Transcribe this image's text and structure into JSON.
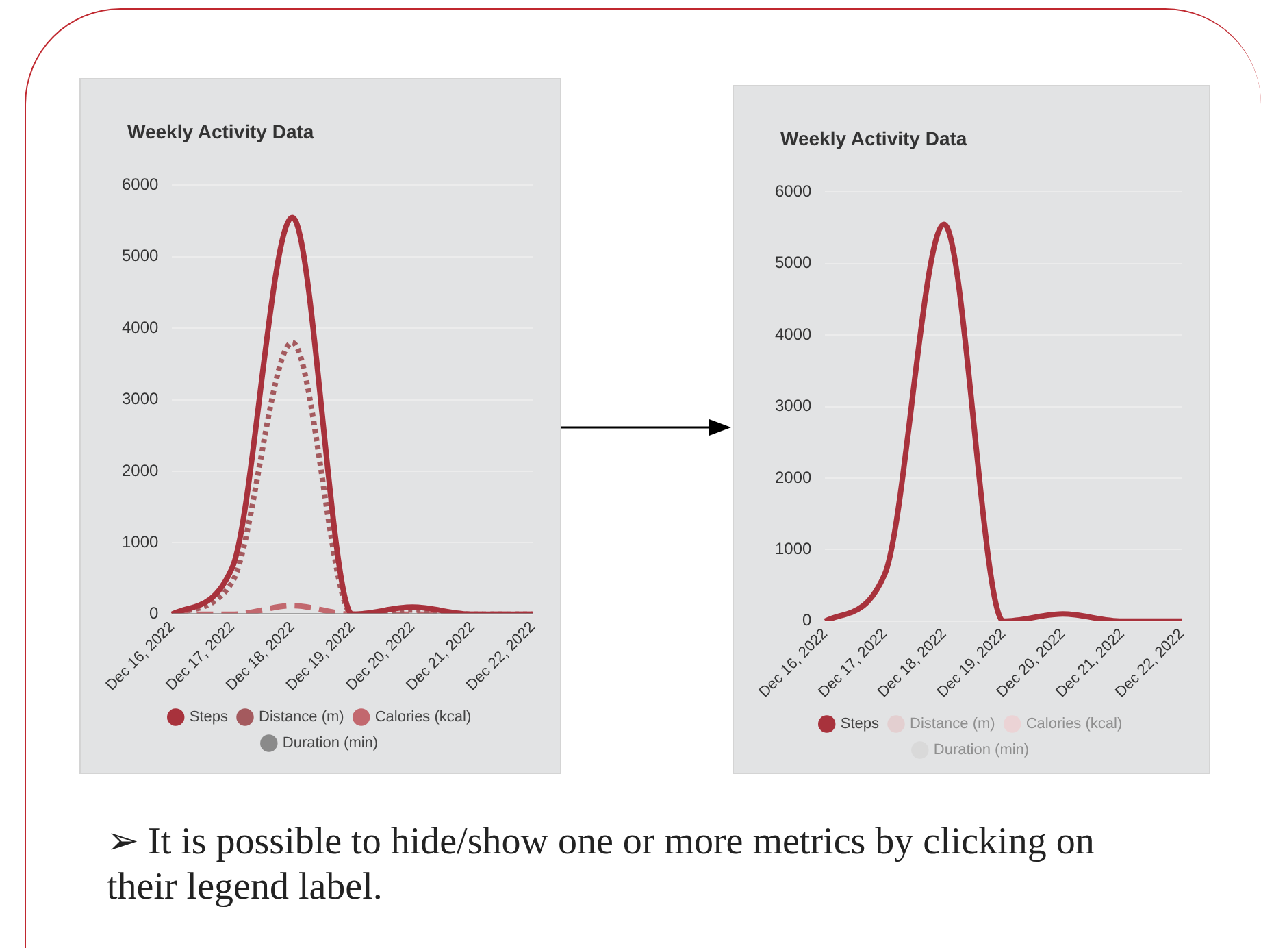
{
  "chart_data": [
    {
      "type": "line",
      "title": "Weekly Activity Data",
      "categories": [
        "Dec 16, 2022",
        "Dec 17, 2022",
        "Dec 18, 2022",
        "Dec 19, 2022",
        "Dec 20, 2022",
        "Dec 21, 2022",
        "Dec 22, 2022"
      ],
      "series": [
        {
          "name": "Steps",
          "color": "#a8323c",
          "line_style": "solid",
          "values": [
            0,
            650,
            5550,
            0,
            100,
            0,
            0
          ]
        },
        {
          "name": "Distance (m)",
          "color": "#a45a5e",
          "line_style": "dotted",
          "values": [
            0,
            450,
            3800,
            0,
            60,
            0,
            0
          ]
        },
        {
          "name": "Calories (kcal)",
          "color": "#c2686e",
          "line_style": "dashed",
          "values": [
            0,
            0,
            120,
            0,
            0,
            0,
            0
          ]
        },
        {
          "name": "Duration (min)",
          "color": "#8a8a8a",
          "line_style": "solid",
          "values": [
            0,
            0,
            0,
            0,
            0,
            0,
            0
          ]
        }
      ],
      "ylim": [
        0,
        6000
      ],
      "yticks": [
        0,
        1000,
        2000,
        3000,
        4000,
        5000,
        6000
      ],
      "grid": "y",
      "legend": "bottom",
      "marker": "none"
    },
    {
      "type": "line",
      "title": "Weekly Activity Data",
      "categories": [
        "Dec 16, 2022",
        "Dec 17, 2022",
        "Dec 18, 2022",
        "Dec 19, 2022",
        "Dec 20, 2022",
        "Dec 21, 2022",
        "Dec 22, 2022"
      ],
      "series": [
        {
          "name": "Steps",
          "color": "#a8323c",
          "line_style": "solid",
          "values": [
            0,
            650,
            5550,
            0,
            100,
            0,
            0
          ]
        },
        {
          "name": "Distance (m)",
          "color": "#e3cfd0",
          "line_style": "dotted",
          "values": [
            null,
            null,
            null,
            null,
            null,
            null,
            null
          ]
        },
        {
          "name": "Calories (kcal)",
          "color": "#ebd3d5",
          "line_style": "dashed",
          "values": [
            null,
            null,
            null,
            null,
            null,
            null,
            null
          ]
        },
        {
          "name": "Duration (min)",
          "color": "#d9d9d9",
          "line_style": "solid",
          "values": [
            null,
            null,
            null,
            null,
            null,
            null,
            null
          ]
        }
      ],
      "ylim": [
        0,
        6000
      ],
      "yticks": [
        0,
        1000,
        2000,
        3000,
        4000,
        5000,
        6000
      ],
      "grid": "y",
      "legend": "bottom",
      "marker": "none",
      "annotations": [
        "➢ It is possible to hide/show one or more metrics by clicking on their legend label."
      ]
    }
  ]
}
